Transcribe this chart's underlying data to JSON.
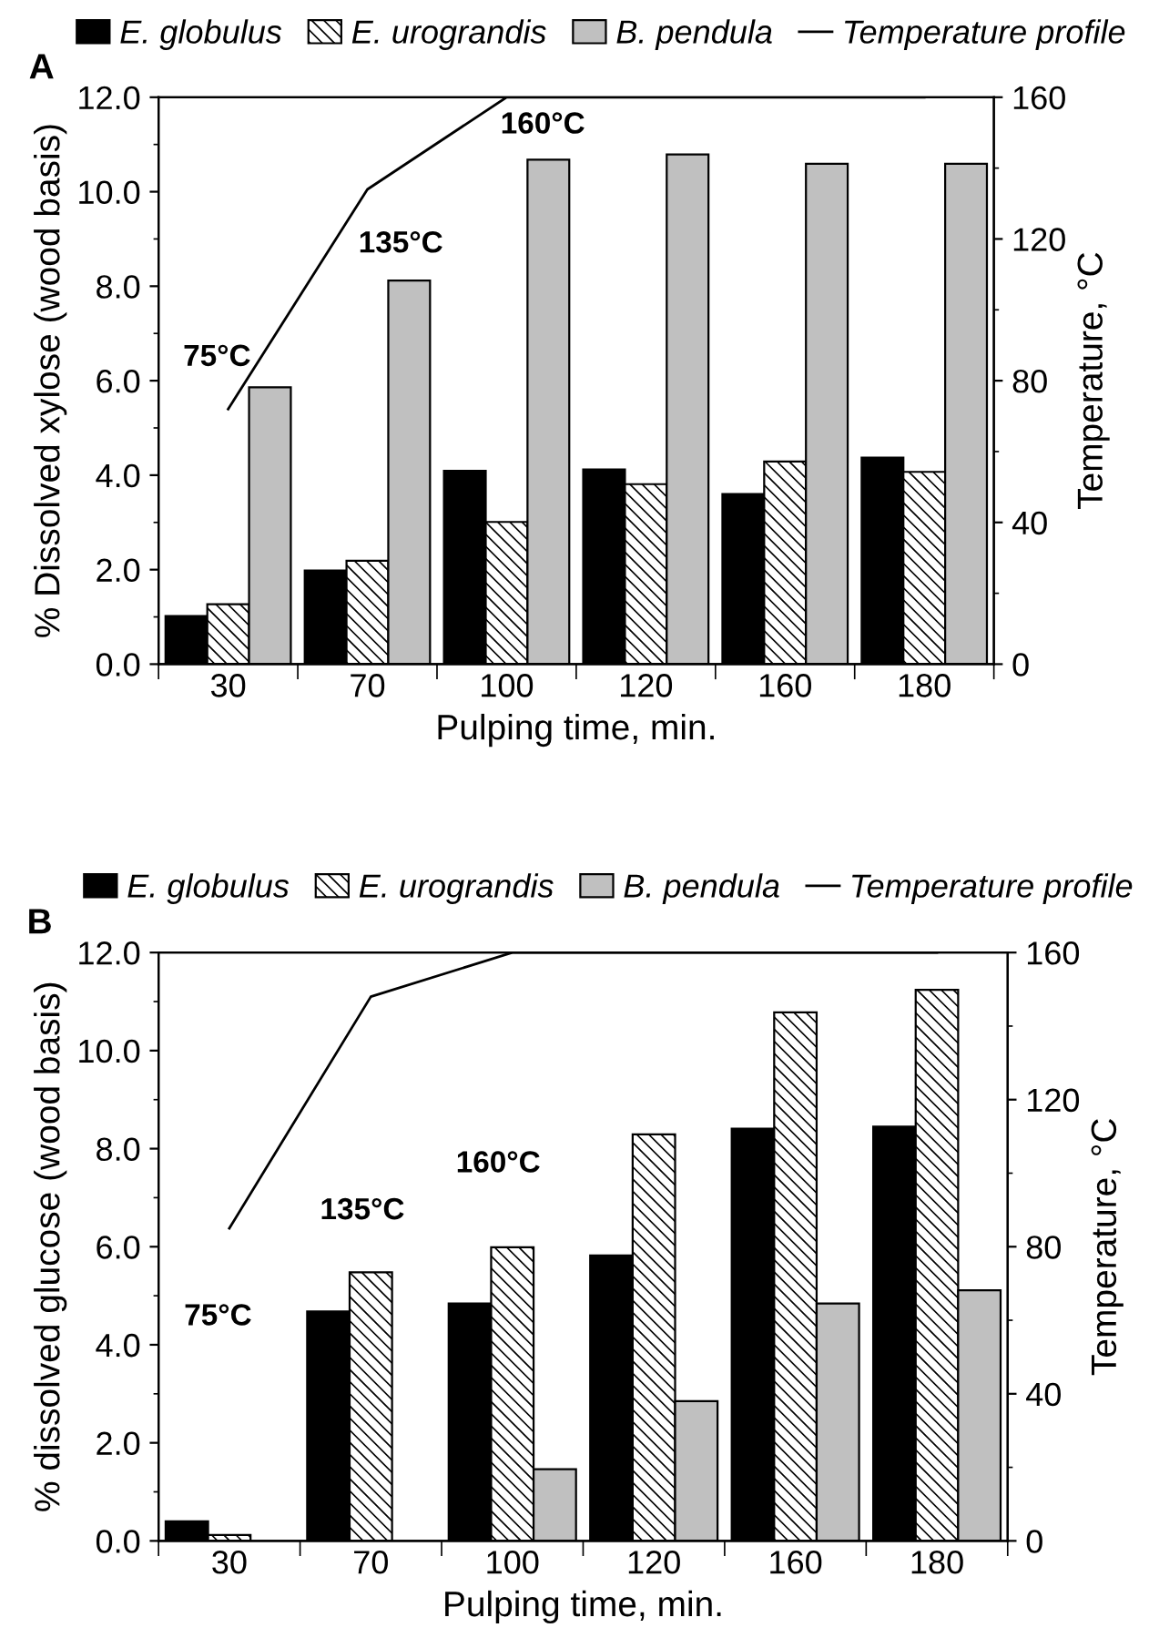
{
  "chart_data": [
    {
      "type": "bar",
      "xlabel": "Pulping time, min.",
      "ylabel": "% Dissolved xylose (wood basis)",
      "y2label": "Temperature, °C",
      "categories": [
        "30",
        "70",
        "100",
        "120",
        "160",
        "180"
      ],
      "series": [
        {
          "name": "E. globulus",
          "color": "#000000",
          "values": [
            1.02,
            1.98,
            4.09,
            4.12,
            3.6,
            4.37
          ]
        },
        {
          "name": "E. urograndis",
          "color": "#000000",
          "values": [
            1.27,
            2.19,
            3.01,
            3.81,
            4.29,
            4.07
          ]
        },
        {
          "name": "B. pendula",
          "color": "#c0c0c0",
          "values": [
            5.86,
            8.12,
            10.68,
            10.79,
            10.59,
            10.59
          ]
        },
        {
          "name": "Temperature profile",
          "type": "line",
          "axis": "y2",
          "color": "#000000",
          "values": [
            72,
            134,
            160,
            160,
            160,
            160
          ]
        }
      ],
      "ylim": [
        0,
        12
      ],
      "yticks": [
        {
          "value": 0,
          "label": "0.0"
        },
        {
          "value": 2,
          "label": "2.0"
        },
        {
          "value": 4,
          "label": "4.0"
        },
        {
          "value": 6,
          "label": "6.0"
        },
        {
          "value": 8,
          "label": "8.0"
        },
        {
          "value": 10,
          "label": "10.0"
        },
        {
          "value": 12,
          "label": "12.0"
        }
      ],
      "y2lim": [
        0,
        160
      ],
      "y2ticks": [
        0,
        40,
        80,
        120,
        160
      ],
      "legend": "top",
      "grid": false,
      "annotations": [
        "A",
        "75°C",
        "135°C",
        "160°C"
      ]
    },
    {
      "type": "bar",
      "xlabel": "Pulping time, min.",
      "ylabel": "% dissolved glucose (wood basis)",
      "y2label": "Temperature, °C",
      "categories": [
        "30",
        "70",
        "100",
        "120",
        "160",
        "180"
      ],
      "series": [
        {
          "name": "E. globulus",
          "color": "#000000",
          "values": [
            0.4,
            4.68,
            4.84,
            5.82,
            8.41,
            8.45
          ]
        },
        {
          "name": "E. urograndis",
          "color": "#000000",
          "values": [
            0.12,
            5.48,
            5.99,
            8.29,
            10.78,
            11.24
          ]
        },
        {
          "name": "B. pendula",
          "color": "#c0c0c0",
          "values": [
            null,
            null,
            1.46,
            2.85,
            4.84,
            5.11
          ]
        },
        {
          "name": "Temperature profile",
          "type": "line",
          "axis": "y2",
          "color": "#000000",
          "values": [
            85,
            148,
            160,
            160,
            160,
            160
          ]
        }
      ],
      "ylim": [
        0,
        12
      ],
      "yticks": [
        {
          "value": 0,
          "label": "0.0"
        },
        {
          "value": 2,
          "label": "2.0"
        },
        {
          "value": 4,
          "label": "4.0"
        },
        {
          "value": 6,
          "label": "6.0"
        },
        {
          "value": 8,
          "label": "8.0"
        },
        {
          "value": 10,
          "label": "10.0"
        },
        {
          "value": 12,
          "label": "12.0"
        }
      ],
      "y2lim": [
        0,
        160
      ],
      "y2ticks": [
        0,
        40,
        80,
        120,
        160
      ],
      "legend": "top",
      "grid": false,
      "annotations": [
        "B",
        "75°C",
        "135°C",
        "160°C"
      ]
    }
  ]
}
